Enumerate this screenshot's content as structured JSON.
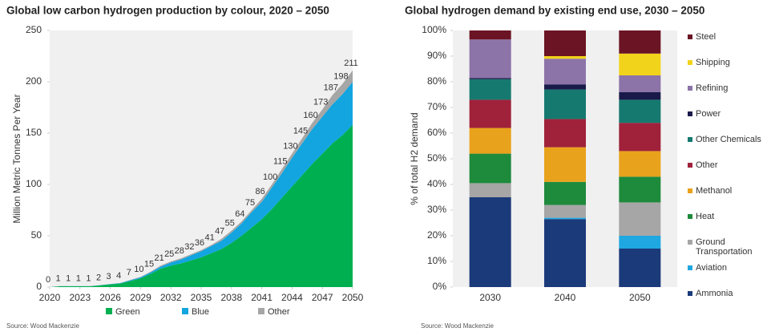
{
  "chart_data": [
    {
      "type": "area",
      "title": "Global low carbon hydrogen production by colour, 2020 – 2050",
      "ylabel": "Million Metric Tonnes  Per Year",
      "source": "Source: Wood Mackenzie",
      "x": [
        2020,
        2021,
        2022,
        2023,
        2024,
        2025,
        2026,
        2027,
        2028,
        2029,
        2030,
        2031,
        2032,
        2033,
        2034,
        2035,
        2036,
        2037,
        2038,
        2039,
        2040,
        2041,
        2042,
        2043,
        2044,
        2045,
        2046,
        2047,
        2048,
        2049,
        2050
      ],
      "series": [
        {
          "name": "Green",
          "color": "#00b050",
          "values": [
            0,
            0.8,
            0.8,
            0.8,
            0.8,
            1.7,
            2.6,
            3.5,
            6,
            8.5,
            13,
            18,
            21,
            23,
            26,
            29,
            33,
            37,
            43,
            50,
            58,
            66,
            76,
            87,
            98,
            109,
            120,
            130,
            140,
            148,
            158
          ]
        },
        {
          "name": "Blue",
          "color": "#12a5e0",
          "values": [
            0,
            0.1,
            0.1,
            0.1,
            0.1,
            0.2,
            0.3,
            0.4,
            0.7,
            1,
            1.5,
            2,
            3,
            4,
            5,
            6,
            7,
            8,
            10,
            12,
            15,
            17,
            21,
            24,
            28,
            31,
            34,
            36,
            38,
            40,
            42
          ]
        },
        {
          "name": "Other",
          "color": "#a6a6a6",
          "values": [
            0,
            0.1,
            0.1,
            0.1,
            0.1,
            0.1,
            0.1,
            0.1,
            0.3,
            0.5,
            0.5,
            1,
            1,
            1,
            1,
            1,
            1,
            2,
            2,
            2,
            2,
            3,
            3,
            4,
            4,
            5,
            6,
            7,
            9,
            10,
            11
          ]
        }
      ],
      "total_labels": [
        0,
        1,
        1,
        1,
        1,
        2,
        3,
        4,
        7,
        10,
        15,
        21,
        25,
        28,
        32,
        36,
        41,
        47,
        55,
        64,
        75,
        86,
        100,
        115,
        130,
        145,
        160,
        173,
        187,
        198,
        211
      ],
      "xlim": [
        2020,
        2050
      ],
      "xticks": [
        2020,
        2023,
        2026,
        2029,
        2032,
        2035,
        2038,
        2041,
        2044,
        2047,
        2050
      ],
      "ylim": [
        0,
        250
      ],
      "yticks": [
        0,
        50,
        100,
        150,
        200,
        250
      ],
      "stacked": true,
      "legend": "bottom"
    },
    {
      "type": "bar",
      "title": "Global hydrogen demand by existing end use, 2030 – 2050",
      "ylabel": "% of total H2 demand",
      "source": "Source: Wood Mackenzie",
      "categories": [
        "2030",
        "2040",
        "2050"
      ],
      "series": [
        {
          "name": "Ammonia",
          "color": "#1b3a7a",
          "values": [
            35,
            26.5,
            15
          ]
        },
        {
          "name": "Aviation",
          "color": "#1ea7e1",
          "values": [
            0,
            0.5,
            5
          ]
        },
        {
          "name": "Ground Transportation",
          "color": "#a6a6a6",
          "values": [
            5.5,
            5,
            13
          ]
        },
        {
          "name": "Heat",
          "color": "#1e8a3c",
          "values": [
            11.5,
            9,
            10
          ]
        },
        {
          "name": "Methanol",
          "color": "#e8a21b",
          "values": [
            10,
            13.5,
            10
          ]
        },
        {
          "name": "Other",
          "color": "#a0213a",
          "values": [
            11,
            11,
            11
          ]
        },
        {
          "name": "Other Chemicals",
          "color": "#16796f",
          "values": [
            8,
            11.5,
            9
          ]
        },
        {
          "name": "Power",
          "color": "#1a1a4a",
          "values": [
            0.5,
            2,
            3
          ]
        },
        {
          "name": "Refining",
          "color": "#8c73a8",
          "values": [
            15,
            10,
            6.5
          ]
        },
        {
          "name": "Shipping",
          "color": "#f2d31b",
          "values": [
            0,
            1,
            8.5
          ]
        },
        {
          "name": "Steel",
          "color": "#6b1424",
          "values": [
            3.5,
            10,
            9
          ]
        }
      ],
      "ylim": [
        0,
        100
      ],
      "yticks": [
        {
          "value": 0,
          "label": "0%"
        },
        {
          "value": 10,
          "label": "10%"
        },
        {
          "value": 20,
          "label": "20%"
        },
        {
          "value": 30,
          "label": "30%"
        },
        {
          "value": 40,
          "label": "40%"
        },
        {
          "value": 50,
          "label": "50%"
        },
        {
          "value": 60,
          "label": "60%"
        },
        {
          "value": 70,
          "label": "70%"
        },
        {
          "value": 80,
          "label": "80%"
        },
        {
          "value": 90,
          "label": "90%"
        },
        {
          "value": 100,
          "label": "100%"
        }
      ],
      "stacked": true,
      "legend": "right"
    }
  ]
}
